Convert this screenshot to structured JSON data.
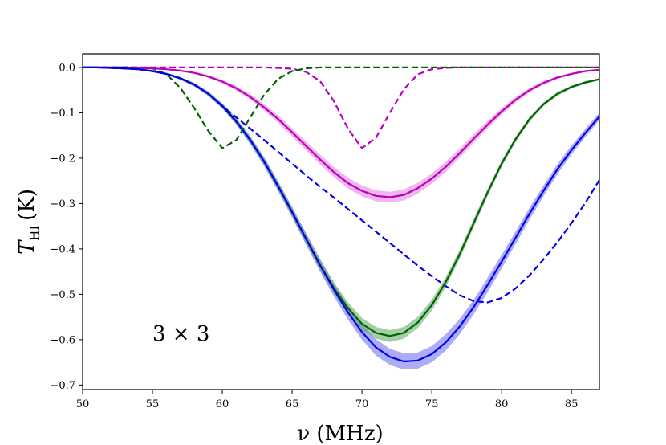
{
  "chart_data": {
    "type": "line",
    "title": "",
    "xlabel": "ν (MHz)",
    "ylabel_main": "T",
    "ylabel_sub": "HI",
    "ylabel_unit": "(K)",
    "xlim": [
      50,
      87
    ],
    "ylim": [
      -0.71,
      0.03
    ],
    "x_ticks": [
      50,
      55,
      60,
      65,
      70,
      75,
      80,
      85
    ],
    "x_tick_labels": [
      "50",
      "55",
      "60",
      "65",
      "70",
      "75",
      "80",
      "85"
    ],
    "y_ticks": [
      0.0,
      -0.1,
      -0.2,
      -0.3,
      -0.4,
      -0.5,
      -0.6,
      -0.7
    ],
    "y_tick_labels": [
      "0.0",
      "−0.1",
      "−0.2",
      "−0.3",
      "−0.4",
      "−0.5",
      "−0.6",
      "−0.7"
    ],
    "annotation": "3 × 3",
    "x": [
      50,
      51,
      52,
      53,
      54,
      55,
      56,
      57,
      58,
      59,
      60,
      61,
      62,
      63,
      64,
      65,
      66,
      67,
      68,
      69,
      70,
      71,
      72,
      73,
      74,
      75,
      76,
      77,
      78,
      79,
      80,
      81,
      82,
      83,
      84,
      85,
      86,
      87
    ],
    "series": [
      {
        "name": "blue solid",
        "style": "solid",
        "color": "#0000ee",
        "band_color": "#6a6af0",
        "values": [
          0.0,
          0.0,
          -0.001,
          -0.002,
          -0.004,
          -0.008,
          -0.014,
          -0.024,
          -0.038,
          -0.058,
          -0.085,
          -0.119,
          -0.16,
          -0.208,
          -0.262,
          -0.319,
          -0.378,
          -0.436,
          -0.49,
          -0.54,
          -0.583,
          -0.617,
          -0.638,
          -0.648,
          -0.646,
          -0.632,
          -0.606,
          -0.571,
          -0.528,
          -0.479,
          -0.428,
          -0.375,
          -0.322,
          -0.272,
          -0.224,
          -0.182,
          -0.144,
          -0.108
        ],
        "band": [
          0.0,
          0.0,
          0.0,
          0.001,
          0.001,
          0.002,
          0.002,
          0.003,
          0.004,
          0.005,
          0.006,
          0.007,
          0.009,
          0.01,
          0.011,
          0.012,
          0.013,
          0.014,
          0.015,
          0.016,
          0.017,
          0.018,
          0.018,
          0.018,
          0.018,
          0.018,
          0.018,
          0.017,
          0.016,
          0.016,
          0.015,
          0.014,
          0.013,
          0.012,
          0.011,
          0.01,
          0.009,
          0.008
        ]
      },
      {
        "name": "green solid",
        "style": "solid",
        "color": "#006400",
        "band_color": "#5aa55a",
        "values": [
          0.0,
          0.0,
          -0.001,
          -0.002,
          -0.004,
          -0.008,
          -0.014,
          -0.024,
          -0.038,
          -0.058,
          -0.085,
          -0.119,
          -0.16,
          -0.208,
          -0.262,
          -0.319,
          -0.378,
          -0.436,
          -0.487,
          -0.531,
          -0.565,
          -0.585,
          -0.592,
          -0.585,
          -0.562,
          -0.524,
          -0.473,
          -0.412,
          -0.343,
          -0.275,
          -0.212,
          -0.158,
          -0.114,
          -0.081,
          -0.058,
          -0.043,
          -0.033,
          -0.026
        ],
        "band": [
          0.0,
          0.0,
          0.0,
          0.001,
          0.001,
          0.002,
          0.002,
          0.003,
          0.003,
          0.004,
          0.005,
          0.006,
          0.007,
          0.008,
          0.009,
          0.01,
          0.011,
          0.012,
          0.012,
          0.013,
          0.013,
          0.013,
          0.013,
          0.013,
          0.012,
          0.012,
          0.011,
          0.01,
          0.009,
          0.008,
          0.007,
          0.006,
          0.005,
          0.004,
          0.004,
          0.003,
          0.003,
          0.002
        ]
      },
      {
        "name": "magenta solid",
        "style": "solid",
        "color": "#bb00bb",
        "band_color": "#e47ae4",
        "values": [
          0.0,
          0.0,
          0.0,
          0.0,
          -0.001,
          -0.002,
          -0.004,
          -0.007,
          -0.012,
          -0.02,
          -0.031,
          -0.046,
          -0.065,
          -0.088,
          -0.114,
          -0.143,
          -0.173,
          -0.203,
          -0.231,
          -0.255,
          -0.272,
          -0.283,
          -0.286,
          -0.281,
          -0.266,
          -0.245,
          -0.219,
          -0.189,
          -0.157,
          -0.126,
          -0.097,
          -0.071,
          -0.05,
          -0.034,
          -0.022,
          -0.014,
          -0.008,
          -0.005
        ],
        "band": [
          0.0,
          0.0,
          0.0,
          0.0,
          0.0,
          0.001,
          0.001,
          0.002,
          0.002,
          0.003,
          0.004,
          0.005,
          0.006,
          0.007,
          0.008,
          0.009,
          0.01,
          0.011,
          0.011,
          0.012,
          0.012,
          0.012,
          0.012,
          0.012,
          0.012,
          0.011,
          0.011,
          0.01,
          0.009,
          0.008,
          0.007,
          0.006,
          0.005,
          0.004,
          0.003,
          0.002,
          0.002,
          0.001
        ]
      },
      {
        "name": "blue dashed",
        "style": "dashed",
        "color": "#0000ee",
        "values": [
          0.0,
          0.0,
          -0.001,
          -0.002,
          -0.004,
          -0.008,
          -0.014,
          -0.024,
          -0.038,
          -0.058,
          -0.085,
          -0.11,
          -0.135,
          -0.16,
          -0.186,
          -0.212,
          -0.238,
          -0.263,
          -0.287,
          -0.312,
          -0.337,
          -0.362,
          -0.387,
          -0.412,
          -0.437,
          -0.46,
          -0.482,
          -0.502,
          -0.515,
          -0.518,
          -0.508,
          -0.487,
          -0.458,
          -0.423,
          -0.385,
          -0.343,
          -0.298,
          -0.248
        ]
      },
      {
        "name": "green dashed",
        "style": "dashed",
        "color": "#006400",
        "values": [
          0.0,
          0.0,
          0.0,
          0.0,
          0.0,
          -0.002,
          -0.015,
          -0.045,
          -0.09,
          -0.14,
          -0.178,
          -0.16,
          -0.11,
          -0.06,
          -0.025,
          -0.008,
          -0.002,
          0.0,
          0.0,
          0.0,
          0.0,
          0.0,
          0.0,
          0.0,
          0.0,
          0.0,
          0.0,
          0.0,
          0.0,
          0.0,
          0.0,
          0.0,
          0.0,
          0.0,
          0.0,
          0.0,
          0.0,
          0.0
        ]
      },
      {
        "name": "magenta dashed",
        "style": "dashed",
        "color": "#bb00bb",
        "values": [
          0.0,
          0.0,
          0.0,
          0.0,
          0.0,
          0.0,
          0.0,
          0.0,
          0.0,
          0.0,
          0.0,
          0.0,
          0.0,
          0.0,
          -0.001,
          -0.003,
          -0.01,
          -0.03,
          -0.075,
          -0.135,
          -0.178,
          -0.155,
          -0.1,
          -0.048,
          -0.015,
          -0.004,
          -0.001,
          0.0,
          0.0,
          0.0,
          0.0,
          0.0,
          0.0,
          0.0,
          0.0,
          0.0,
          0.0,
          0.0
        ]
      }
    ]
  }
}
